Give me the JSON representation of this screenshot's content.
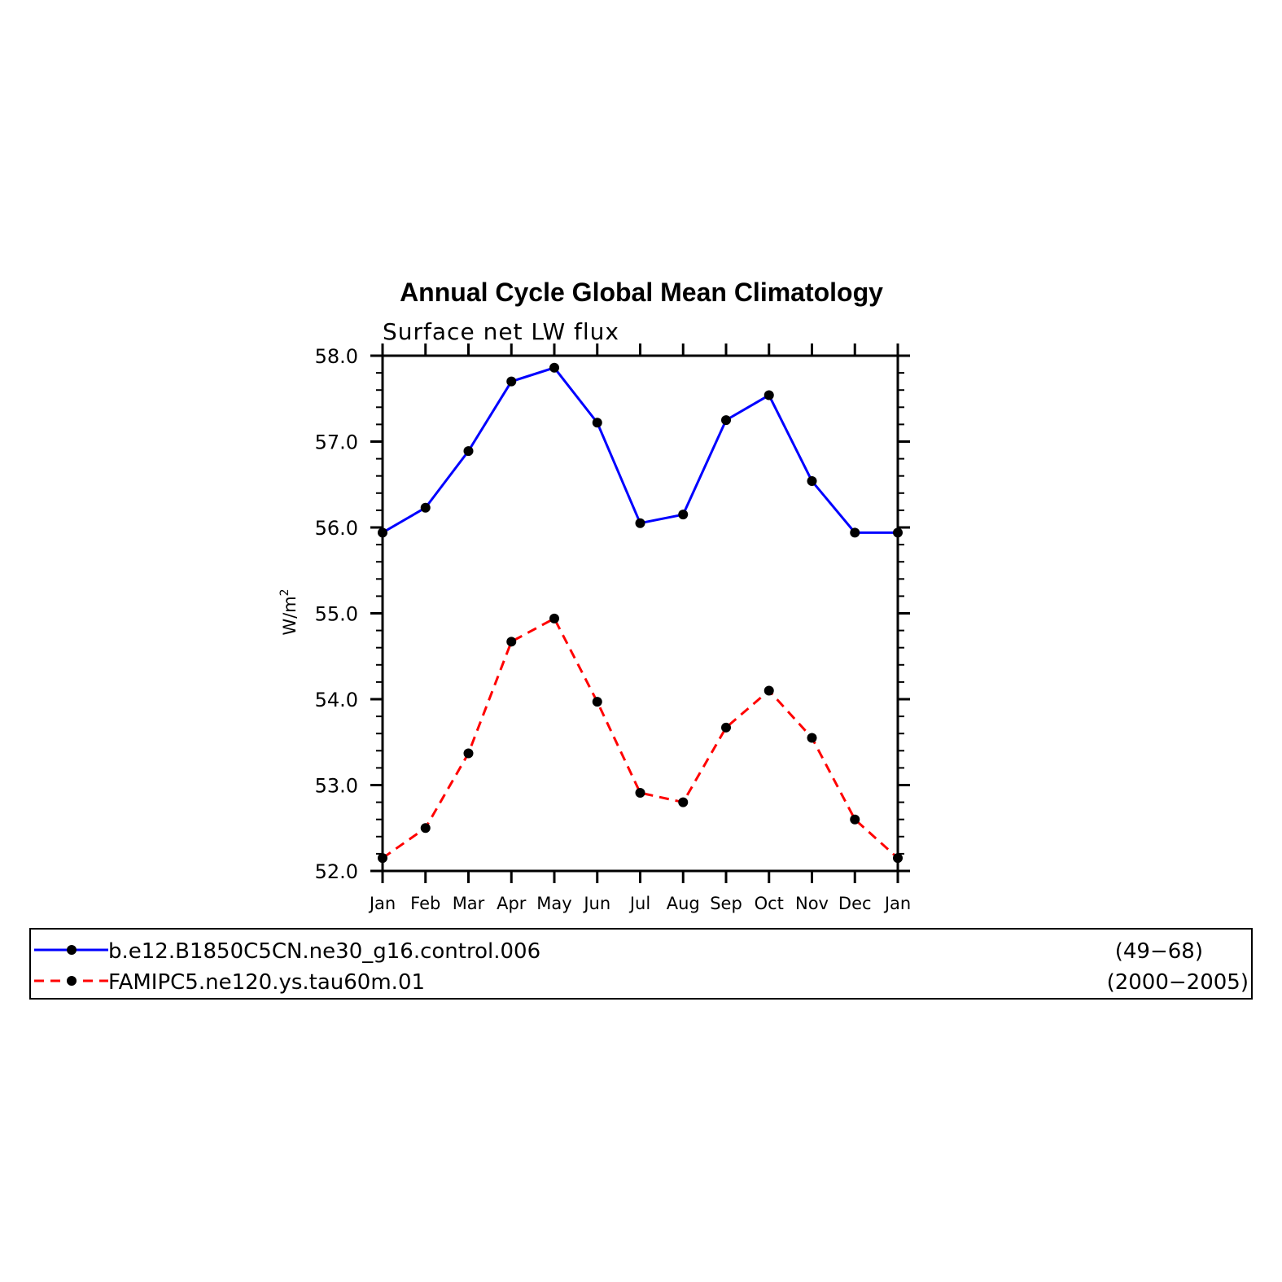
{
  "chart_data": {
    "type": "line",
    "title": "Annual Cycle Global Mean Climatology",
    "subtitle": "Surface net LW flux",
    "ylabel": "W/m",
    "ylabel_superscript": "2",
    "categories": [
      "Jan",
      "Feb",
      "Mar",
      "Apr",
      "May",
      "Jun",
      "Jul",
      "Aug",
      "Sep",
      "Oct",
      "Nov",
      "Dec",
      "Jan"
    ],
    "ylim": [
      52.0,
      58.0
    ],
    "yticks": [
      "52.0",
      "53.0",
      "54.0",
      "55.0",
      "56.0",
      "57.0",
      "58.0"
    ],
    "grid": false,
    "legend_position": "bottom",
    "series": [
      {
        "name": "b.e12.B1850C5CN.ne30_g16.control.006",
        "years": "(49−68)",
        "color": "#0000ff",
        "dash": "solid",
        "values": [
          55.94,
          56.23,
          56.89,
          57.7,
          57.86,
          57.22,
          56.05,
          56.15,
          57.25,
          57.54,
          56.54,
          55.94,
          55.94
        ]
      },
      {
        "name": "FAMIPC5.ne120.ys.tau60m.01",
        "years": "(2000−2005)",
        "color": "#ff0000",
        "dash": "dashed",
        "values": [
          52.15,
          52.5,
          53.37,
          54.67,
          54.94,
          53.97,
          52.91,
          52.8,
          53.67,
          54.1,
          53.55,
          52.6,
          52.15
        ]
      }
    ],
    "marker_color": "#000000"
  }
}
